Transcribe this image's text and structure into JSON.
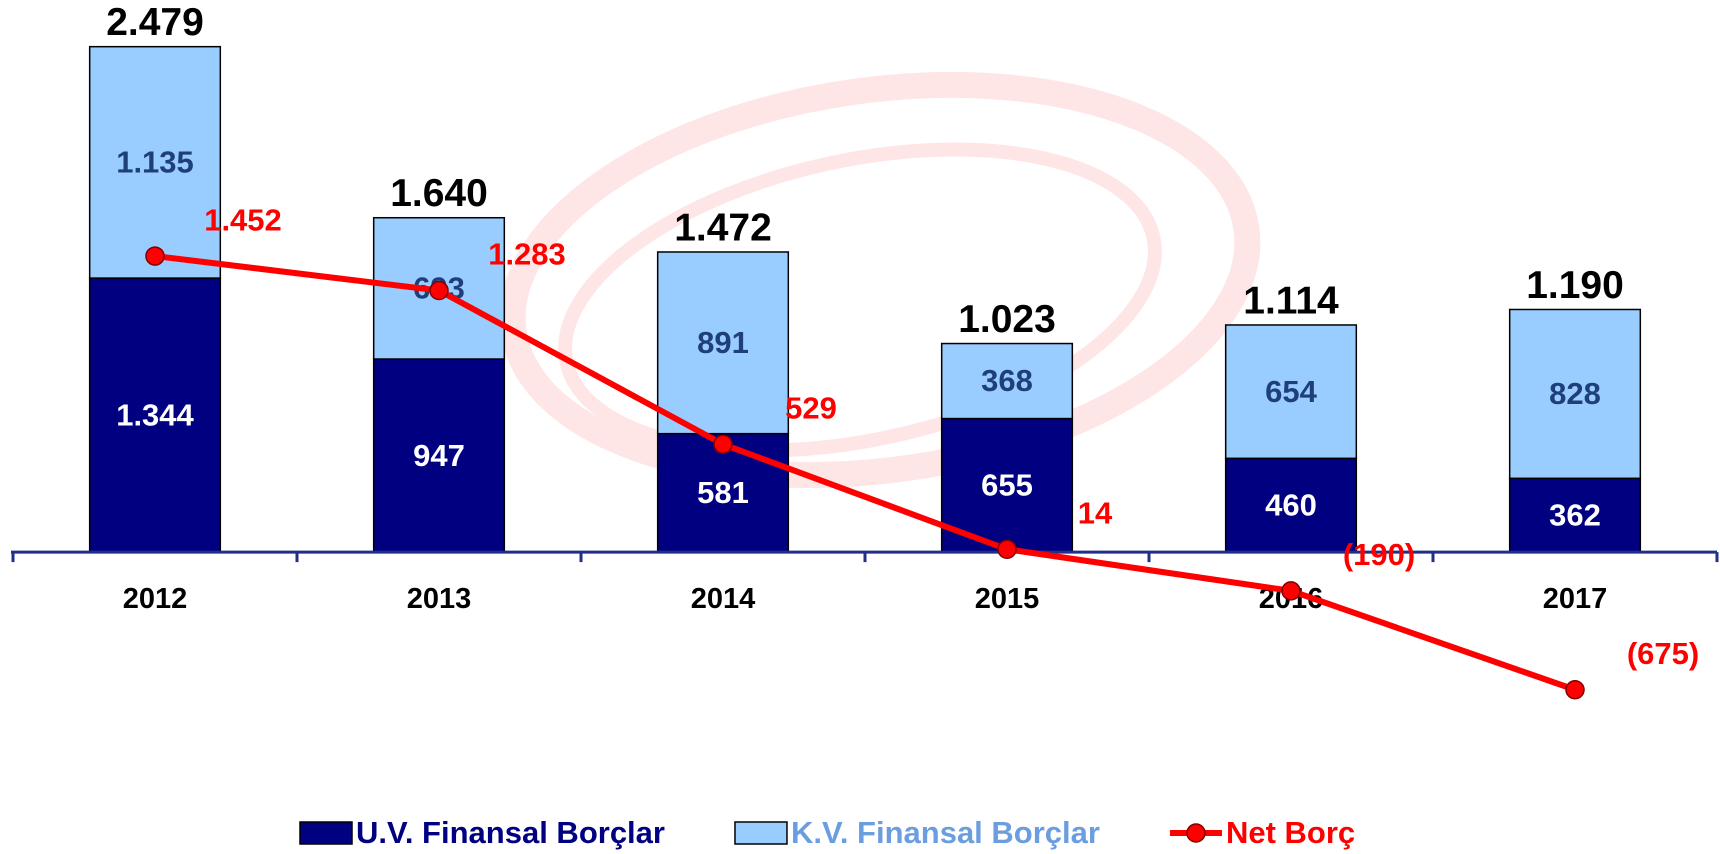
{
  "chart_data": {
    "type": "stacked_bar_line",
    "categories": [
      "2012",
      "2013",
      "2014",
      "2015",
      "2016",
      "2017"
    ],
    "series": [
      {
        "name": "U.V. Finansal Borçlar",
        "color": "#000080",
        "values": [
          1344,
          947,
          581,
          655,
          460,
          362
        ],
        "value_labels": [
          "1.344",
          "947",
          "581",
          "655",
          "460",
          "362"
        ]
      },
      {
        "name": "K.V. Finansal Borçlar",
        "color": "#99ccff",
        "values": [
          1135,
          693,
          891,
          368,
          654,
          828
        ],
        "value_labels": [
          "1.135",
          "693",
          "891",
          "368",
          "654",
          "828"
        ]
      },
      {
        "name": "Net Borç",
        "type": "line",
        "color": "#ff0000",
        "values": [
          1452,
          1283,
          529,
          14,
          -190,
          -675
        ],
        "value_labels": [
          "1.452",
          "1.283",
          "529",
          "14",
          "(190)",
          "(675)"
        ]
      }
    ],
    "totals": {
      "values": [
        2479,
        1640,
        1472,
        1023,
        1114,
        1190
      ],
      "value_labels": [
        "2.479",
        "1.640",
        "1.472",
        "1.023",
        "1.114",
        "1.190"
      ]
    },
    "ylim": [
      -1000,
      2600
    ]
  }
}
